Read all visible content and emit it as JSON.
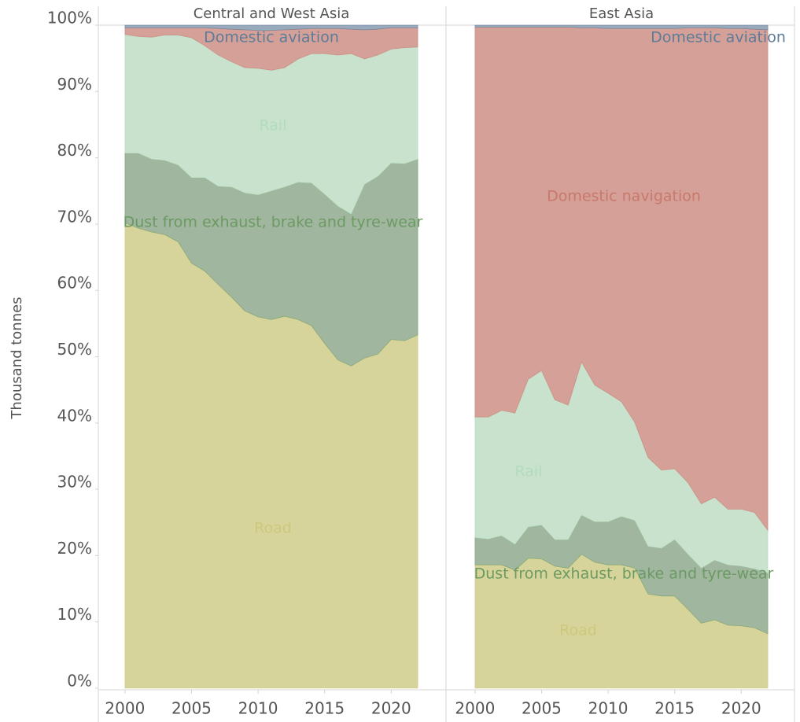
{
  "chart_data": [
    {
      "type": "area",
      "title": "Central and West Asia",
      "ylabel": "Thousand tonnes",
      "x": [
        2000,
        2001,
        2002,
        2003,
        2004,
        2005,
        2006,
        2007,
        2008,
        2009,
        2010,
        2011,
        2012,
        2013,
        2014,
        2015,
        2016,
        2017,
        2018,
        2019,
        2020,
        2021,
        2022
      ],
      "xlim": [
        1998,
        2024
      ],
      "xticks": [
        2000,
        2005,
        2010,
        2015,
        2020
      ],
      "ylim": [
        0,
        100
      ],
      "yticks": [
        {
          "value": 0,
          "label": "0%"
        },
        {
          "value": 10,
          "label": "10%"
        },
        {
          "value": 20,
          "label": "20%"
        },
        {
          "value": 30,
          "label": "30%"
        },
        {
          "value": 40,
          "label": "40%"
        },
        {
          "value": 50,
          "label": "50%"
        },
        {
          "value": 60,
          "label": "60%"
        },
        {
          "value": 70,
          "label": "70%"
        },
        {
          "value": 80,
          "label": "80%"
        },
        {
          "value": 90,
          "label": "90%"
        },
        {
          "value": 100,
          "label": "100%"
        }
      ],
      "series": [
        {
          "name": "Road",
          "color": "#d6d49a",
          "label_color": "#cdc87c",
          "values": [
            70.2,
            69.4,
            68.8,
            68.4,
            67.3,
            64.1,
            62.9,
            60.9,
            59.0,
            56.9,
            56.0,
            55.6,
            56.1,
            55.6,
            54.7,
            52.0,
            49.5,
            48.6,
            49.8,
            50.4,
            52.6,
            52.4,
            53.3
          ]
        },
        {
          "name": "Dust from exhaust, brake and tyre-wear",
          "color": "#a0b69e",
          "label_color": "#6b9a63",
          "values": [
            10.5,
            11.3,
            11.0,
            11.2,
            11.6,
            12.9,
            14.1,
            14.8,
            16.6,
            17.8,
            18.4,
            19.4,
            19.5,
            20.7,
            21.5,
            22.5,
            23.2,
            22.9,
            26.2,
            26.8,
            26.6,
            26.7,
            26.5
          ]
        },
        {
          "name": "Rail",
          "color": "#c8e2cd",
          "label_color": "#b3dbbd",
          "values": [
            17.9,
            17.6,
            18.4,
            18.9,
            19.6,
            21.1,
            19.9,
            19.8,
            18.9,
            18.9,
            19.1,
            18.2,
            18.0,
            18.6,
            19.5,
            21.2,
            22.8,
            24.2,
            18.9,
            18.3,
            17.2,
            17.5,
            16.9
          ]
        },
        {
          "name": "Domestic navigation",
          "color": "#d5a098",
          "label_color": "#c8786c",
          "values": [
            1.0,
            1.3,
            1.4,
            1.1,
            1.1,
            1.5,
            2.7,
            4.0,
            4.9,
            5.7,
            5.7,
            6.0,
            5.7,
            4.5,
            3.8,
            3.8,
            4.0,
            3.7,
            4.4,
            3.9,
            3.2,
            3.0,
            2.9
          ]
        },
        {
          "name": "Domestic aviation",
          "color": "#98aabb",
          "label_color": "#5d7c98",
          "values": [
            0.4,
            0.4,
            0.4,
            0.4,
            0.4,
            0.4,
            0.4,
            0.5,
            0.6,
            0.7,
            0.8,
            0.8,
            0.7,
            0.6,
            0.5,
            0.5,
            0.5,
            0.6,
            0.7,
            0.6,
            0.4,
            0.4,
            0.4
          ]
        }
      ]
    },
    {
      "type": "area",
      "title": "East Asia",
      "x": [
        2000,
        2001,
        2002,
        2003,
        2004,
        2005,
        2006,
        2007,
        2008,
        2009,
        2010,
        2011,
        2012,
        2013,
        2014,
        2015,
        2016,
        2017,
        2018,
        2019,
        2020,
        2021,
        2022
      ],
      "xlim": [
        1998,
        2024
      ],
      "xticks": [
        2000,
        2005,
        2010,
        2015,
        2020
      ],
      "ylim": [
        0,
        100
      ],
      "series": [
        {
          "name": "Road",
          "color": "#d6d49a",
          "label_color": "#cdc87c",
          "values": [
            18.6,
            18.6,
            18.6,
            17.8,
            19.6,
            19.5,
            18.4,
            18.1,
            20.2,
            19.0,
            18.6,
            18.6,
            18.1,
            14.2,
            13.9,
            13.9,
            11.9,
            9.8,
            10.3,
            9.5,
            9.4,
            9.1,
            8.2
          ]
        },
        {
          "name": "Dust from exhaust, brake and tyre-wear",
          "color": "#a0b69e",
          "label_color": "#6b9a63",
          "values": [
            4.1,
            3.9,
            4.4,
            3.9,
            4.7,
            5.1,
            4.0,
            4.3,
            5.9,
            6.1,
            6.5,
            7.3,
            7.2,
            7.2,
            7.2,
            8.5,
            8.3,
            8.3,
            9.0,
            9.1,
            9.0,
            8.9,
            9.2
          ]
        },
        {
          "name": "Rail",
          "color": "#c8e2cd",
          "label_color": "#b3dbbd",
          "values": [
            18.2,
            18.4,
            18.9,
            19.8,
            22.3,
            23.3,
            21.1,
            20.3,
            23.1,
            20.6,
            19.4,
            17.3,
            14.8,
            13.4,
            11.8,
            10.7,
            10.8,
            9.7,
            9.5,
            8.4,
            8.6,
            8.5,
            6.4
          ]
        },
        {
          "name": "Domestic navigation",
          "color": "#d5a098",
          "label_color": "#c8786c",
          "values": [
            58.8,
            58.8,
            57.8,
            58.2,
            53.1,
            51.8,
            56.2,
            57.0,
            50.4,
            53.9,
            55.0,
            56.3,
            59.4,
            64.7,
            66.6,
            66.4,
            68.6,
            71.8,
            70.8,
            72.5,
            72.5,
            72.9,
            75.5
          ]
        },
        {
          "name": "Domestic aviation",
          "color": "#98aabb",
          "label_color": "#5d7c98",
          "values": [
            0.3,
            0.3,
            0.3,
            0.3,
            0.3,
            0.3,
            0.3,
            0.3,
            0.4,
            0.4,
            0.5,
            0.5,
            0.5,
            0.5,
            0.5,
            0.5,
            0.4,
            0.4,
            0.4,
            0.5,
            0.5,
            0.6,
            0.7
          ]
        }
      ]
    }
  ]
}
